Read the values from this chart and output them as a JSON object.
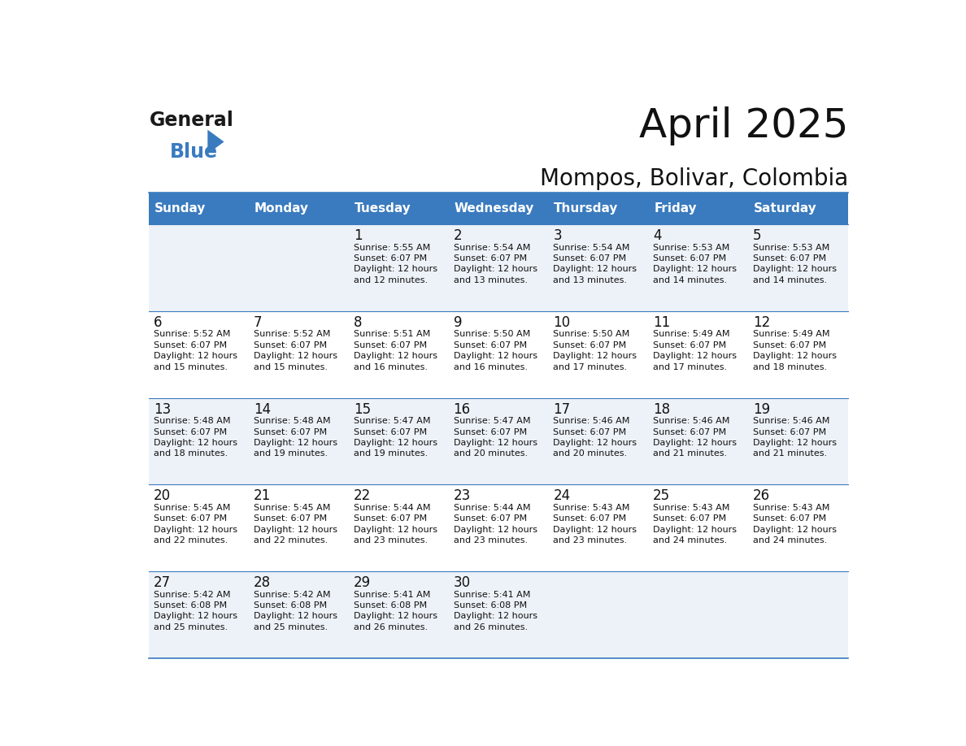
{
  "title": "April 2025",
  "subtitle": "Mompos, Bolivar, Colombia",
  "header_color": "#3a7bbf",
  "header_text_color": "#ffffff",
  "cell_bg_even": "#edf2f8",
  "cell_bg_odd": "#ffffff",
  "separator_color": "#3a7bbf",
  "day_headers": [
    "Sunday",
    "Monday",
    "Tuesday",
    "Wednesday",
    "Thursday",
    "Friday",
    "Saturday"
  ],
  "calendar": [
    [
      {
        "day": "",
        "sunrise": "",
        "sunset": "",
        "daylight": ""
      },
      {
        "day": "",
        "sunrise": "",
        "sunset": "",
        "daylight": ""
      },
      {
        "day": "1",
        "sunrise": "5:55 AM",
        "sunset": "6:07 PM",
        "daylight": "12 hours and 12 minutes."
      },
      {
        "day": "2",
        "sunrise": "5:54 AM",
        "sunset": "6:07 PM",
        "daylight": "12 hours and 13 minutes."
      },
      {
        "day": "3",
        "sunrise": "5:54 AM",
        "sunset": "6:07 PM",
        "daylight": "12 hours and 13 minutes."
      },
      {
        "day": "4",
        "sunrise": "5:53 AM",
        "sunset": "6:07 PM",
        "daylight": "12 hours and 14 minutes."
      },
      {
        "day": "5",
        "sunrise": "5:53 AM",
        "sunset": "6:07 PM",
        "daylight": "12 hours and 14 minutes."
      }
    ],
    [
      {
        "day": "6",
        "sunrise": "5:52 AM",
        "sunset": "6:07 PM",
        "daylight": "12 hours and 15 minutes."
      },
      {
        "day": "7",
        "sunrise": "5:52 AM",
        "sunset": "6:07 PM",
        "daylight": "12 hours and 15 minutes."
      },
      {
        "day": "8",
        "sunrise": "5:51 AM",
        "sunset": "6:07 PM",
        "daylight": "12 hours and 16 minutes."
      },
      {
        "day": "9",
        "sunrise": "5:50 AM",
        "sunset": "6:07 PM",
        "daylight": "12 hours and 16 minutes."
      },
      {
        "day": "10",
        "sunrise": "5:50 AM",
        "sunset": "6:07 PM",
        "daylight": "12 hours and 17 minutes."
      },
      {
        "day": "11",
        "sunrise": "5:49 AM",
        "sunset": "6:07 PM",
        "daylight": "12 hours and 17 minutes."
      },
      {
        "day": "12",
        "sunrise": "5:49 AM",
        "sunset": "6:07 PM",
        "daylight": "12 hours and 18 minutes."
      }
    ],
    [
      {
        "day": "13",
        "sunrise": "5:48 AM",
        "sunset": "6:07 PM",
        "daylight": "12 hours and 18 minutes."
      },
      {
        "day": "14",
        "sunrise": "5:48 AM",
        "sunset": "6:07 PM",
        "daylight": "12 hours and 19 minutes."
      },
      {
        "day": "15",
        "sunrise": "5:47 AM",
        "sunset": "6:07 PM",
        "daylight": "12 hours and 19 minutes."
      },
      {
        "day": "16",
        "sunrise": "5:47 AM",
        "sunset": "6:07 PM",
        "daylight": "12 hours and 20 minutes."
      },
      {
        "day": "17",
        "sunrise": "5:46 AM",
        "sunset": "6:07 PM",
        "daylight": "12 hours and 20 minutes."
      },
      {
        "day": "18",
        "sunrise": "5:46 AM",
        "sunset": "6:07 PM",
        "daylight": "12 hours and 21 minutes."
      },
      {
        "day": "19",
        "sunrise": "5:46 AM",
        "sunset": "6:07 PM",
        "daylight": "12 hours and 21 minutes."
      }
    ],
    [
      {
        "day": "20",
        "sunrise": "5:45 AM",
        "sunset": "6:07 PM",
        "daylight": "12 hours and 22 minutes."
      },
      {
        "day": "21",
        "sunrise": "5:45 AM",
        "sunset": "6:07 PM",
        "daylight": "12 hours and 22 minutes."
      },
      {
        "day": "22",
        "sunrise": "5:44 AM",
        "sunset": "6:07 PM",
        "daylight": "12 hours and 23 minutes."
      },
      {
        "day": "23",
        "sunrise": "5:44 AM",
        "sunset": "6:07 PM",
        "daylight": "12 hours and 23 minutes."
      },
      {
        "day": "24",
        "sunrise": "5:43 AM",
        "sunset": "6:07 PM",
        "daylight": "12 hours and 23 minutes."
      },
      {
        "day": "25",
        "sunrise": "5:43 AM",
        "sunset": "6:07 PM",
        "daylight": "12 hours and 24 minutes."
      },
      {
        "day": "26",
        "sunrise": "5:43 AM",
        "sunset": "6:07 PM",
        "daylight": "12 hours and 24 minutes."
      }
    ],
    [
      {
        "day": "27",
        "sunrise": "5:42 AM",
        "sunset": "6:08 PM",
        "daylight": "12 hours and 25 minutes."
      },
      {
        "day": "28",
        "sunrise": "5:42 AM",
        "sunset": "6:08 PM",
        "daylight": "12 hours and 25 minutes."
      },
      {
        "day": "29",
        "sunrise": "5:41 AM",
        "sunset": "6:08 PM",
        "daylight": "12 hours and 26 minutes."
      },
      {
        "day": "30",
        "sunrise": "5:41 AM",
        "sunset": "6:08 PM",
        "daylight": "12 hours and 26 minutes."
      },
      {
        "day": "",
        "sunrise": "",
        "sunset": "",
        "daylight": ""
      },
      {
        "day": "",
        "sunrise": "",
        "sunset": "",
        "daylight": ""
      },
      {
        "day": "",
        "sunrise": "",
        "sunset": "",
        "daylight": ""
      }
    ]
  ],
  "logo_text1": "General",
  "logo_text2": "Blue",
  "logo_color1": "#1a1a1a",
  "logo_color2": "#3a7bbf",
  "logo_triangle_color": "#3a7bbf",
  "title_fontsize": 36,
  "subtitle_fontsize": 20,
  "header_fontsize": 11,
  "day_num_fontsize": 12,
  "cell_fontsize": 8
}
